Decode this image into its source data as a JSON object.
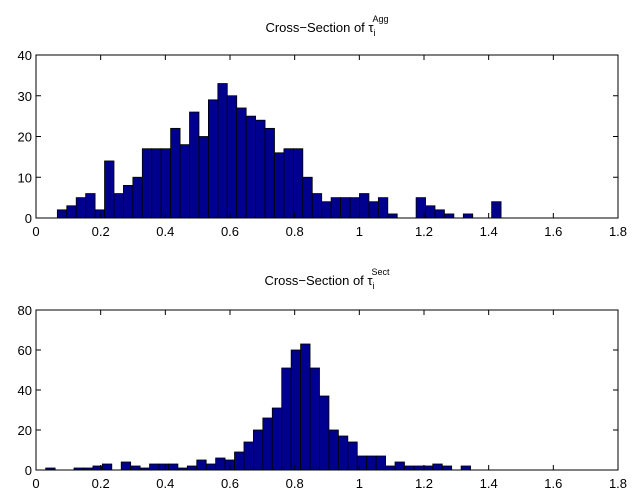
{
  "colors": {
    "bar_fill": "#00008f",
    "bar_edge": "#000000",
    "axes": "#000000",
    "background": "#ffffff"
  },
  "chart_data": [
    {
      "type": "bar",
      "title": {
        "prefix": "Cross−Section of τ",
        "subscript": "i",
        "superscript": "Agg"
      },
      "xlabel": "",
      "ylabel": "",
      "xlim": [
        0,
        1.8
      ],
      "ylim": [
        0,
        40
      ],
      "xticks": [
        "0",
        "0.2",
        "0.4",
        "0.6",
        "0.8",
        "1",
        "1.2",
        "1.4",
        "1.6",
        "1.8"
      ],
      "yticks": [
        "0",
        "10",
        "20",
        "30",
        "40"
      ],
      "grid": false,
      "bin_start": 0.066,
      "bin_width": 0.0292,
      "values": [
        2,
        3,
        5,
        6,
        2,
        14,
        6,
        8,
        10,
        17,
        17,
        17,
        22,
        18,
        26,
        20,
        29,
        33,
        30,
        27,
        25,
        24,
        22,
        16,
        17,
        17,
        10,
        6,
        4,
        5,
        5,
        5,
        6,
        4,
        5,
        1,
        0,
        0,
        5,
        3,
        2,
        1,
        0,
        1,
        0,
        0,
        4
      ]
    },
    {
      "type": "bar",
      "title": {
        "prefix": "Cross−Section of τ",
        "subscript": "i",
        "superscript": "Sect"
      },
      "xlabel": "",
      "ylabel": "",
      "xlim": [
        0,
        1.8
      ],
      "ylim": [
        0,
        80
      ],
      "xticks": [
        "0",
        "0.2",
        "0.4",
        "0.6",
        "0.8",
        "1",
        "1.2",
        "1.4",
        "1.6",
        "1.8"
      ],
      "yticks": [
        "0",
        "20",
        "40",
        "60",
        "80"
      ],
      "grid": false,
      "bin_start": 0.03,
      "bin_width": 0.0292,
      "values": [
        1,
        0,
        0,
        1,
        1,
        2,
        3,
        0,
        4,
        2,
        1,
        3,
        3,
        3,
        1,
        2,
        5,
        3,
        6,
        5,
        9,
        14,
        20,
        26,
        31,
        51,
        60,
        63,
        51,
        37,
        20,
        17,
        14,
        7,
        7,
        7,
        2,
        4,
        2,
        2,
        2,
        3,
        2,
        0,
        2
      ]
    }
  ]
}
